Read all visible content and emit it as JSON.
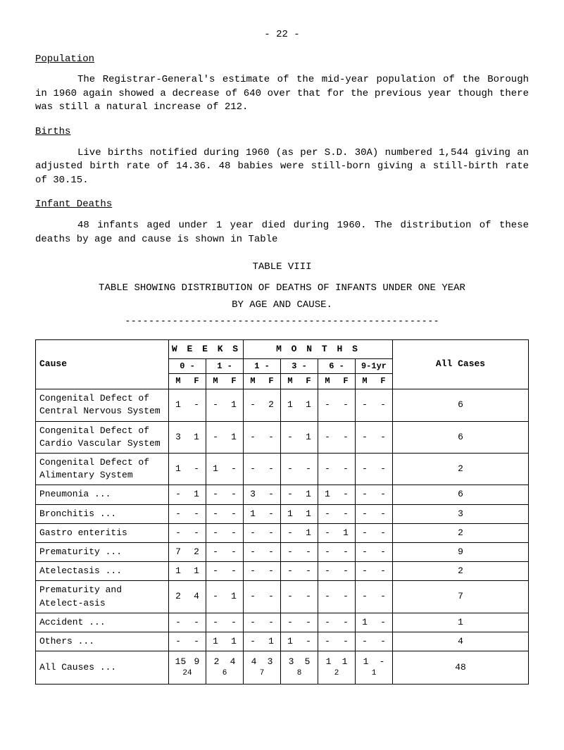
{
  "page_number": "- 22 -",
  "heading_population": "Population",
  "para_population": "The Registrar-General's estimate of the mid-year population of the Borough in 1960 again showed a decrease of 640 over that for the previous year though there was still a natural increase of 212.",
  "heading_births": "Births",
  "para_births": "Live births notified during 1960 (as per S.D. 30A) numbered 1,544 giving an adjusted birth rate of 14.36.  48 babies were still-born giving a still-birth rate of 30.15.",
  "heading_infant_deaths": "Infant Deaths",
  "para_infant_deaths": "48 infants aged under 1 year died during 1960.  The distribution of these deaths by age and cause is shown in Table",
  "table_title": "TABLE VIII",
  "table_subtitle": "TABLE SHOWING DISTRIBUTION OF DEATHS OF INFANTS UNDER ONE YEAR",
  "table_sub_subtitle": "BY AGE AND CAUSE.",
  "dashed_line": "-----------------------------------------------------",
  "table": {
    "header_cause": "Cause",
    "header_weeks": "W E E K S",
    "header_months": "M O N T H S",
    "header_all_cases": "All Cases",
    "col_ranges": [
      "0 -",
      "1 -",
      "1 -",
      "3 -",
      "6 -",
      "9-1yr"
    ],
    "mf_label_m": "M",
    "mf_label_f": "F",
    "rows": [
      {
        "cause": "Congenital Defect of Central Nervous System",
        "vals": [
          "1",
          "-",
          "-",
          "1",
          "-",
          "2",
          "1",
          "1",
          "-",
          "-",
          "-",
          "-"
        ],
        "total": "6"
      },
      {
        "cause": "Congenital Defect of Cardio Vascular System",
        "vals": [
          "3",
          "1",
          "-",
          "1",
          "-",
          "-",
          "-",
          "1",
          "-",
          "-",
          "-",
          "-"
        ],
        "total": "6"
      },
      {
        "cause": "Congenital Defect of Alimentary System",
        "vals": [
          "1",
          "-",
          "1",
          "-",
          "-",
          "-",
          "-",
          "-",
          "-",
          "-",
          "-",
          "-"
        ],
        "total": "2"
      },
      {
        "cause": "Pneumonia        ...",
        "vals": [
          "-",
          "1",
          "-",
          "-",
          "3",
          "-",
          "-",
          "1",
          "1",
          "-",
          "-",
          "-"
        ],
        "total": "6"
      },
      {
        "cause": "Bronchitis       ...",
        "vals": [
          "-",
          "-",
          "-",
          "-",
          "1",
          "-",
          "1",
          "1",
          "-",
          "-",
          "-",
          "-"
        ],
        "total": "3"
      },
      {
        "cause": "Gastro enteritis",
        "vals": [
          "-",
          "-",
          "-",
          "-",
          "-",
          "-",
          "-",
          "1",
          "-",
          "1",
          "-",
          "-"
        ],
        "total": "2"
      },
      {
        "cause": "Prematurity      ...",
        "vals": [
          "7",
          "2",
          "-",
          "-",
          "-",
          "-",
          "-",
          "-",
          "-",
          "-",
          "-",
          "-"
        ],
        "total": "9"
      },
      {
        "cause": "Atelectasis      ...",
        "vals": [
          "1",
          "1",
          "-",
          "-",
          "-",
          "-",
          "-",
          "-",
          "-",
          "-",
          "-",
          "-"
        ],
        "total": "2"
      },
      {
        "cause": "Prematurity and Atelect-asis",
        "vals": [
          "2",
          "4",
          "-",
          "1",
          "-",
          "-",
          "-",
          "-",
          "-",
          "-",
          "-",
          "-"
        ],
        "total": "7"
      },
      {
        "cause": "Accident         ...",
        "vals": [
          "-",
          "-",
          "-",
          "-",
          "-",
          "-",
          "-",
          "-",
          "-",
          "-",
          "1",
          "-"
        ],
        "total": "1"
      },
      {
        "cause": "Others           ...",
        "vals": [
          "-",
          "-",
          "1",
          "1",
          "-",
          "1",
          "1",
          "-",
          "-",
          "-",
          "-",
          "-"
        ],
        "total": "4"
      }
    ],
    "totals": {
      "cause": "All Causes       ...",
      "vals": [
        "15",
        "9",
        "2",
        "4",
        "4",
        "3",
        "3",
        "5",
        "1",
        "1",
        "1",
        "-"
      ],
      "subtotals": [
        "24",
        "6",
        "7",
        "8",
        "2",
        "1"
      ],
      "total": "48"
    }
  }
}
